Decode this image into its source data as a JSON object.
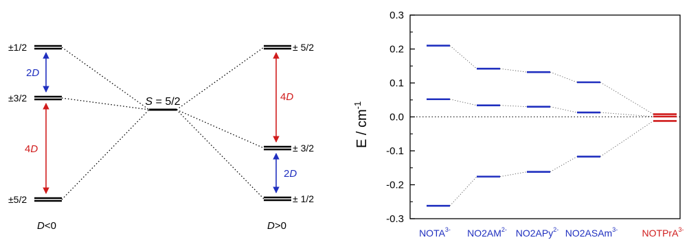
{
  "energy_diagram": {
    "center_label": {
      "var": "S",
      "rest": " = 5/2"
    },
    "left": {
      "caption": {
        "var": "D",
        "rest": "<0"
      },
      "levels": [
        {
          "label": "±1/2"
        },
        {
          "label": "±3/2"
        },
        {
          "label": "±5/2"
        }
      ],
      "gap_top": {
        "num": "2",
        "var": "D",
        "color": "#1f2fbf"
      },
      "gap_bottom": {
        "num": "4",
        "var": "D",
        "color": "#d01c1c"
      }
    },
    "right": {
      "caption": {
        "var": "D",
        "rest": ">0"
      },
      "levels": [
        {
          "label": "± 5/2"
        },
        {
          "label": "± 3/2"
        },
        {
          "label": "± 1/2"
        }
      ],
      "gap_top": {
        "num": "4",
        "var": "D",
        "color": "#d01c1c"
      },
      "gap_bottom": {
        "num": "2",
        "var": "D",
        "color": "#1f2fbf"
      }
    }
  },
  "chart_data": {
    "type": "scatter",
    "ylabel": {
      "base": "E / cm",
      "sup": "-1"
    },
    "ylim": [
      -0.3,
      0.3
    ],
    "yticks": [
      "0.3",
      "0.2",
      "0.1",
      "0.0",
      "-0.1",
      "-0.2",
      "-0.3"
    ],
    "zero_line": true,
    "categories": [
      {
        "base": "NOTA",
        "sup": "3-",
        "color": "#1f2fbf"
      },
      {
        "base": "NO2AM",
        "sup": "2-",
        "color": "#1f2fbf"
      },
      {
        "base": "NO2APy",
        "sup": "2-",
        "color": "#1f2fbf"
      },
      {
        "base": "NO2ASAm",
        "sup": "3-",
        "color": "#1f2fbf"
      },
      {
        "base": "NOTPrA",
        "sup": "3-",
        "color": "#d01c1c"
      }
    ],
    "levels": [
      [
        0.21,
        0.052,
        -0.262
      ],
      [
        0.142,
        0.034,
        -0.176
      ],
      [
        0.132,
        0.03,
        -0.162
      ],
      [
        0.102,
        0.013,
        -0.117
      ],
      [
        0.008,
        0.001,
        -0.012
      ]
    ]
  }
}
